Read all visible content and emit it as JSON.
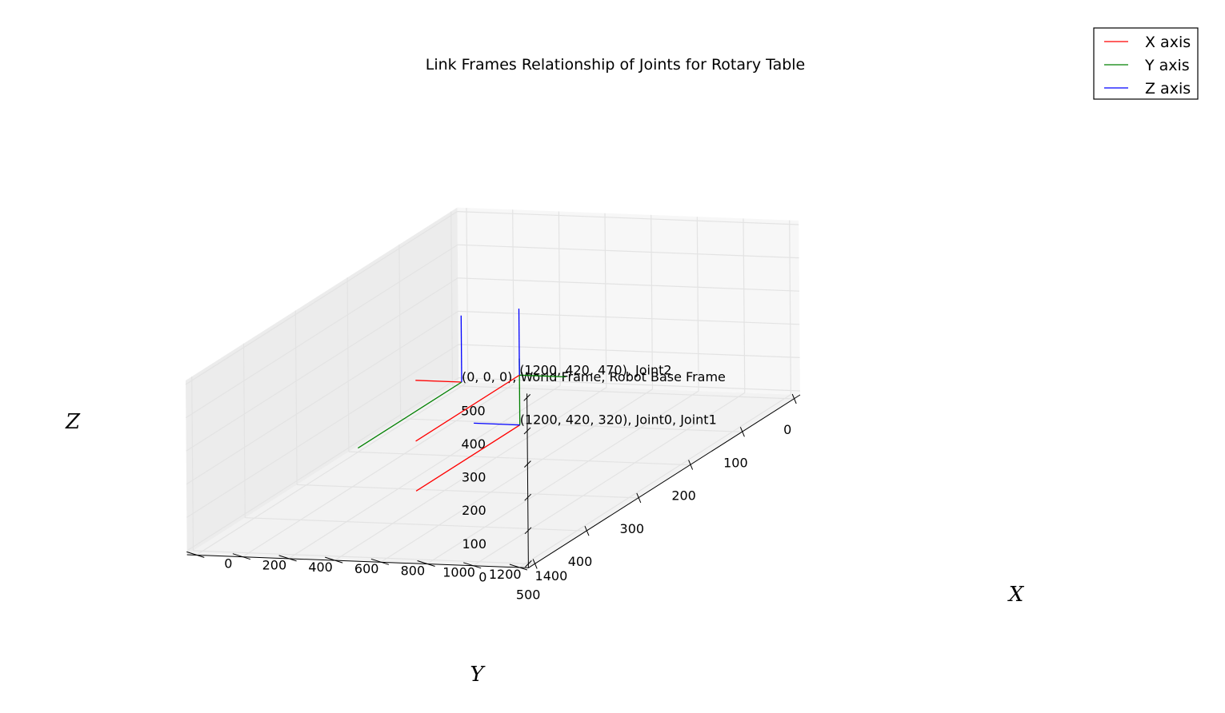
{
  "chart_data": {
    "type": "line3d",
    "title": "Link Frames Relationship of Joints for Rotary Table",
    "xlabel": "X",
    "ylabel": "Y",
    "zlabel": "Z",
    "xlim": [
      0,
      1400
    ],
    "ylim": [
      0,
      500
    ],
    "zlim": [
      0,
      500
    ],
    "x_ticks": [
      "0",
      "200",
      "400",
      "600",
      "800",
      "1000",
      "1200",
      "1400"
    ],
    "y_ticks": [
      "0",
      "100",
      "200",
      "300",
      "400",
      "500"
    ],
    "z_ticks": [
      "0",
      "100",
      "200",
      "300",
      "400",
      "500"
    ],
    "grid": true,
    "legend_position": "top-right",
    "axis_length": 200,
    "series": [
      {
        "name": "X axis",
        "color": "#ff0000"
      },
      {
        "name": "Y axis",
        "color": "#008000"
      },
      {
        "name": "Z axis",
        "color": "#0000ff"
      }
    ],
    "frames": [
      {
        "origin": [
          0,
          0,
          0
        ],
        "label": "(0, 0, 0), World Frame, Robot Base Frame",
        "x_dir": [
          -1,
          0,
          0
        ],
        "y_dir": [
          0,
          1,
          0
        ],
        "z_dir": [
          0,
          0,
          1
        ]
      },
      {
        "origin": [
          1200,
          420,
          320
        ],
        "label": "(1200, 420, 320), Joint0, Joint1",
        "x_dir": [
          0,
          1,
          0
        ],
        "y_dir": [
          0,
          0,
          1
        ],
        "z_dir": [
          -1,
          0,
          0
        ]
      },
      {
        "origin": [
          1200,
          420,
          470
        ],
        "label": "(1200, 420, 470), Joint2",
        "x_dir": [
          0,
          1,
          0
        ],
        "y_dir": [
          1,
          0,
          0
        ],
        "z_dir": [
          0,
          0,
          1
        ]
      }
    ]
  }
}
